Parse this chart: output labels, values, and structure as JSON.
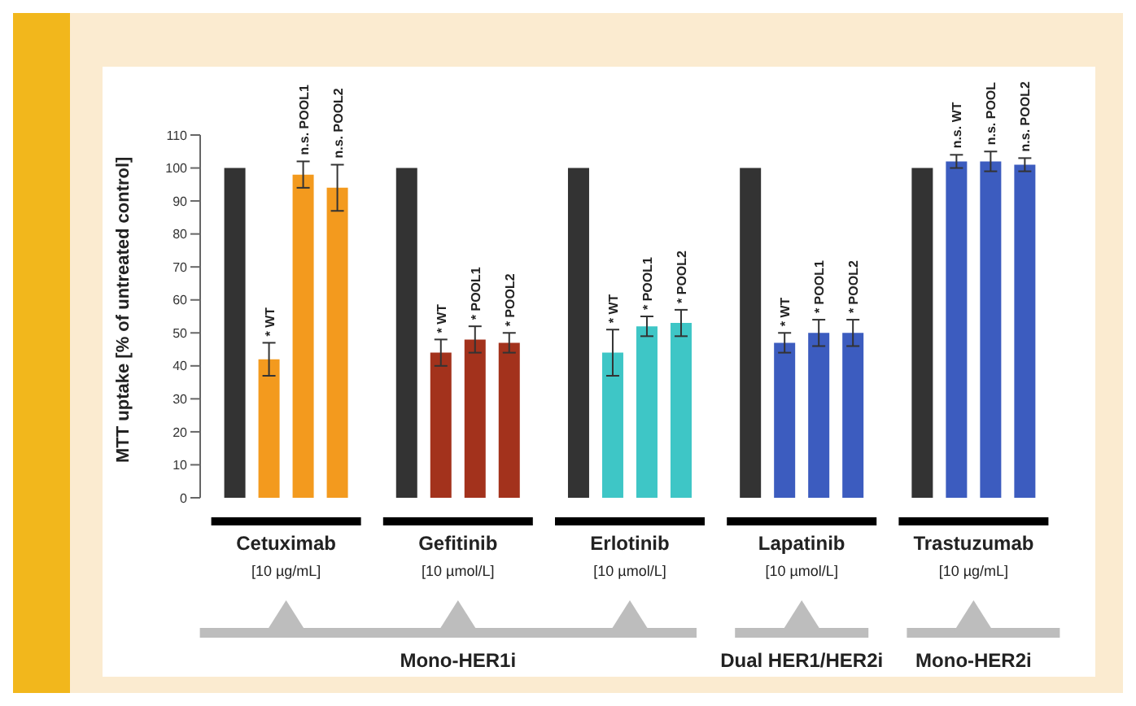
{
  "chart_data": {
    "type": "bar",
    "ylabel": "MTT uptake [% of untreated control]",
    "categories": [
      "Cetuximab",
      "Gefitinib",
      "Erlotinib",
      "Lapatinib",
      "Trastuzumab"
    ],
    "series": [
      {
        "color": "#333333",
        "values": [
          100,
          100,
          100,
          100,
          100
        ]
      },
      {
        "colors": [
          "#f39a1e",
          "#a3321c",
          "#3ec6c6",
          "#3c5cbf",
          "#3c5cbf"
        ],
        "values": [
          42,
          44,
          44,
          47,
          102
        ],
        "errors": [
          5,
          4,
          7,
          3,
          2
        ],
        "value_labels": [
          "* WT",
          "* WT",
          "* WT",
          "* WT",
          "n.s. WT"
        ]
      },
      {
        "colors": [
          "#f39a1e",
          "#a3321c",
          "#3ec6c6",
          "#3c5cbf",
          "#3c5cbf"
        ],
        "values": [
          98,
          48,
          52,
          50,
          102
        ],
        "errors": [
          4,
          4,
          3,
          4,
          3
        ],
        "value_labels": [
          "n.s. POOL1",
          "* POOL1",
          "* POOL1",
          "* POOL1",
          "n.s. POOL"
        ]
      },
      {
        "colors": [
          "#f39a1e",
          "#a3321c",
          "#3ec6c6",
          "#3c5cbf",
          "#3c5cbf"
        ],
        "values": [
          94,
          47,
          53,
          50,
          101
        ],
        "errors": [
          7,
          3,
          4,
          4,
          2
        ],
        "value_labels": [
          "n.s. POOL2",
          "* POOL2",
          "* POOL2",
          "* POOL2",
          "n.s. POOL2"
        ]
      }
    ],
    "ylim": [
      0,
      110
    ],
    "yticks": [
      0,
      10,
      20,
      30,
      40,
      50,
      60,
      70,
      80,
      90,
      100,
      110
    ],
    "grid": false,
    "annotations": [
      "[10 µg/mL]",
      "[10 µmol/L]",
      "[10 µmol/L]",
      "[10 µmol/L]",
      "[10 µg/mL]",
      "Mono-HER1i",
      "Dual HER1/HER2i",
      "Mono-HER2i"
    ]
  }
}
